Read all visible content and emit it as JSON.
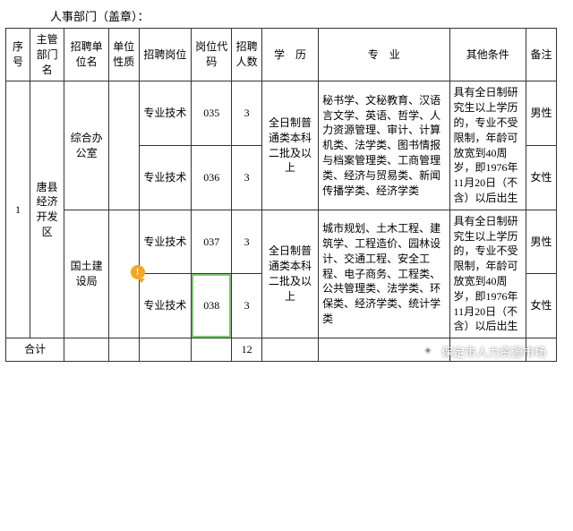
{
  "top_line": "人事部门（盖章）：",
  "headers": {
    "seq": "序号",
    "dept": "主管部门名",
    "unit": "招聘单位名",
    "nature": "单位性质",
    "job": "招聘岗位",
    "code": "岗位代码",
    "num": "招聘人数",
    "edu": "学　历",
    "major": "专　业",
    "other": "其他条件",
    "note": "备注"
  },
  "seq": "1",
  "dept": "唐县经济开发区",
  "unit1": "综合办公室",
  "unit2": "国土建设局",
  "job": "专业技术",
  "edu1": "全日制普通类本科二批及以上",
  "edu2": "全日制普通类本科二批及以上",
  "major1": "秘书学、文秘教育、汉语言文学、英语、哲学、人力资源管理、审计、计算机类、法学类、图书情报与档案管理类、工商管理类、经济与贸易类、新闻传播学类、经济学类",
  "major2": "城市规划、土木工程、建筑学、工程造价、园林设计、交通工程、安全工程、电子商务、工程类、公共管理类、法学类、环保类、经济学类、统计学类",
  "other_cond": "具有全日制研究生以上学历的，专业不受限制，年龄可放宽到40周岁，即1976年11月20日（不含）以后出生",
  "r1": {
    "code": "035",
    "num": "3",
    "note": "男性"
  },
  "r2": {
    "code": "036",
    "num": "3",
    "note": "女性"
  },
  "r3": {
    "code": "037",
    "num": "3",
    "note": "男性"
  },
  "r4": {
    "code": "038",
    "num": "3",
    "note": "女性"
  },
  "total_label": "合计",
  "total_num": "12",
  "watermark": "保定市人力资源市场",
  "err_mark": "!"
}
